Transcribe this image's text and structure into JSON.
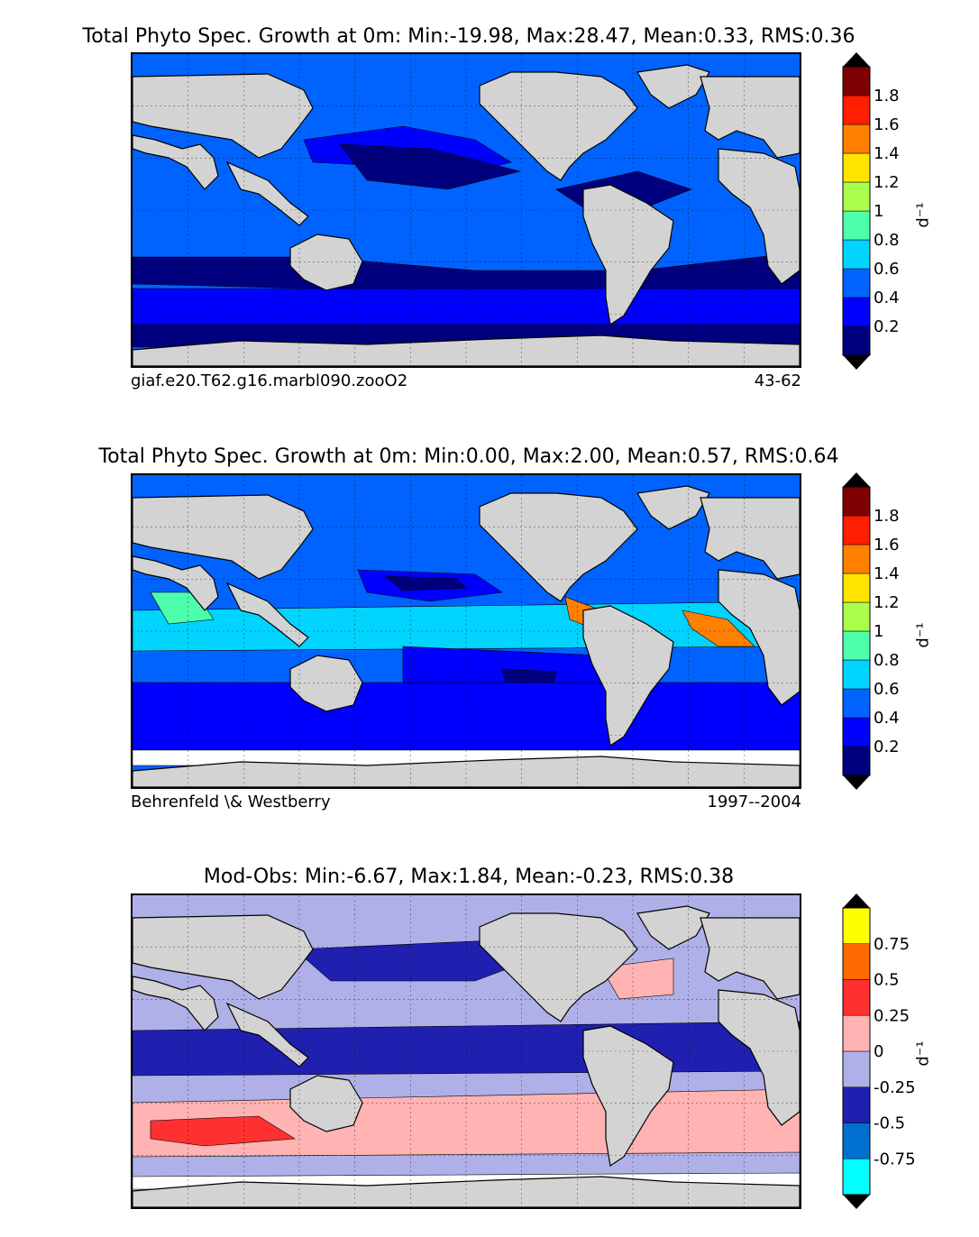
{
  "panels": [
    {
      "title": "Total Phyto Spec. Growth at 0m: Min:-19.98, Max:28.47, Mean:0.33, RMS:0.36",
      "caption_left": "giaf.e20.T62.g16.marbl090.zooO2",
      "caption_right": "43-62"
    },
    {
      "title": "Total Phyto Spec. Growth at 0m: Min:0.00, Max:2.00, Mean:0.57, RMS:0.64",
      "caption_left": "Behrenfeld \\& Westberry",
      "caption_right": "1997--2004"
    },
    {
      "title": "Mod-Obs: Min:-6.67, Max:1.84, Mean:-0.23, RMS:0.38",
      "caption_left": "",
      "caption_right": ""
    }
  ],
  "colorbar_unit": "d⁻¹",
  "colors": {
    "land": "#d3d3d3",
    "growth_scale": [
      "#00007f",
      "#0000ff",
      "#0063ff",
      "#00d4ff",
      "#4dffaa",
      "#aaff4d",
      "#ffe500",
      "#ff7f00",
      "#ff1e00",
      "#7f0000"
    ],
    "diff_scale": [
      "#00ffff",
      "#0070d0",
      "#2020b0",
      "#b0b0e8",
      "#ffb3b3",
      "#ff3030",
      "#ff6a00",
      "#ffff00"
    ]
  },
  "chart_data": [
    {
      "type": "heatmap",
      "title": "Total Phyto Spec. Growth at 0m: Min:-19.98, Max:28.47, Mean:0.33, RMS:0.36",
      "stats": {
        "min": -19.98,
        "max": 28.47,
        "mean": 0.33,
        "rms": 0.36
      },
      "colorbar": {
        "ticks": [
          "0.2",
          "0.4",
          "0.6",
          "0.8",
          "1",
          "1.2",
          "1.4",
          "1.6",
          "1.8"
        ],
        "range": [
          0,
          2
        ],
        "levels": 10,
        "extend": "both"
      },
      "grid": true
    },
    {
      "type": "heatmap",
      "title": "Total Phyto Spec. Growth at 0m: Min:0.00, Max:2.00, Mean:0.57, RMS:0.64",
      "stats": {
        "min": 0.0,
        "max": 2.0,
        "mean": 0.57,
        "rms": 0.64
      },
      "colorbar": {
        "ticks": [
          "0.2",
          "0.4",
          "0.6",
          "0.8",
          "1",
          "1.2",
          "1.4",
          "1.6",
          "1.8"
        ],
        "range": [
          0,
          2
        ],
        "levels": 10,
        "extend": "both"
      },
      "grid": true
    },
    {
      "type": "heatmap",
      "title": "Mod-Obs: Min:-6.67, Max:1.84, Mean:-0.23, RMS:0.38",
      "stats": {
        "min": -6.67,
        "max": 1.84,
        "mean": -0.23,
        "rms": 0.38
      },
      "colorbar": {
        "ticks": [
          "-0.75",
          "-0.5",
          "-0.25",
          "0",
          "0.25",
          "0.5",
          "0.75"
        ],
        "range": [
          -1,
          1
        ],
        "levels": 8,
        "extend": "both"
      },
      "grid": true
    }
  ]
}
